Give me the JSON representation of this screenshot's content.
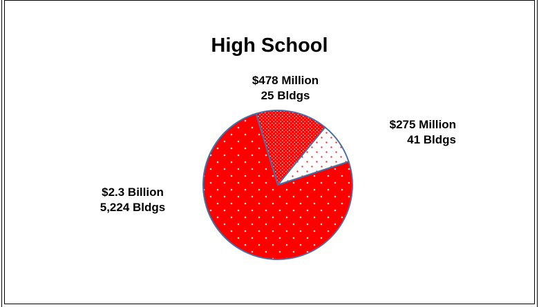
{
  "chart_data": {
    "type": "pie",
    "title": "High School",
    "slices": [
      {
        "label_line1": "$2.3 Billion",
        "label_line2": "5,224 Bldgs",
        "value": 2300,
        "color": "#ff0000",
        "pattern": "sparse-dots"
      },
      {
        "label_line1": "$478 Million",
        "label_line2": "25 Bldgs",
        "value": 478,
        "color": "#ff0000",
        "pattern": "dense-dots"
      },
      {
        "label_line1": "$275 Million",
        "label_line2": "41 Bldgs",
        "value": 275,
        "color": "#ffffff",
        "pattern": "red-dots-on-white"
      }
    ],
    "units": "USD millions",
    "legend": "none",
    "outline_color": "#4a6fa5"
  }
}
